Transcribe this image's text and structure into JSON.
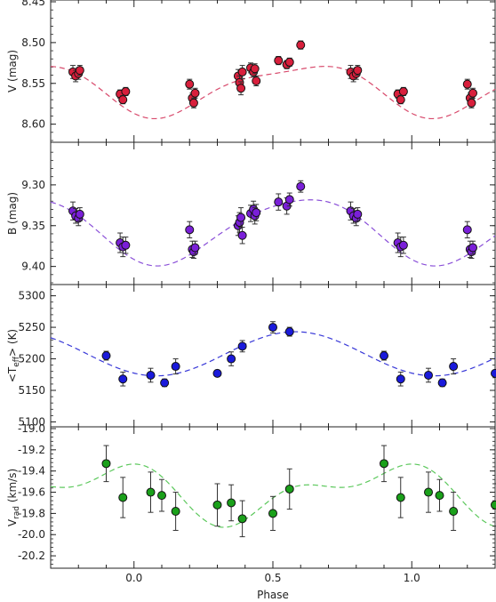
{
  "chart_data": {
    "type": "scatter",
    "xlabel": "Phase",
    "x_ticks": [
      "0.0",
      "0.5",
      "1.0"
    ],
    "xlim": [
      -0.3,
      1.3
    ],
    "panels": [
      {
        "key": "V",
        "ylabel_main": "V  (mag)",
        "ylabel_sub": "",
        "ylabel_rest": "",
        "inverted": true,
        "ylim": [
          8.45,
          8.62
        ],
        "yticks": [
          "8.45",
          "8.50",
          "8.55",
          "8.60"
        ],
        "ytick_values": [
          8.45,
          8.5,
          8.55,
          8.6
        ],
        "marker_color": "#d81f3c",
        "model_color": "#d84a6c",
        "model": {
          "mean": 8.556,
          "a1": -0.03,
          "phi1": 0.6,
          "a2": -0.008,
          "phi2": 0.3
        },
        "points": [
          {
            "x": -0.22,
            "y": 8.536,
            "err": 0.008
          },
          {
            "x": -0.21,
            "y": 8.541,
            "err": 0.007
          },
          {
            "x": -0.2,
            "y": 8.538,
            "err": 0.007
          },
          {
            "x": -0.195,
            "y": 8.534,
            "err": 0.006
          },
          {
            "x": -0.05,
            "y": 8.563,
            "err": 0.005
          },
          {
            "x": -0.04,
            "y": 8.57,
            "err": 0.005
          },
          {
            "x": -0.03,
            "y": 8.56,
            "err": 0.005
          },
          {
            "x": 0.2,
            "y": 8.551,
            "err": 0.006
          },
          {
            "x": 0.21,
            "y": 8.568,
            "err": 0.006
          },
          {
            "x": 0.215,
            "y": 8.574,
            "err": 0.006
          },
          {
            "x": 0.22,
            "y": 8.562,
            "err": 0.006
          },
          {
            "x": 0.375,
            "y": 8.541,
            "err": 0.008
          },
          {
            "x": 0.38,
            "y": 8.549,
            "err": 0.008
          },
          {
            "x": 0.385,
            "y": 8.556,
            "err": 0.008
          },
          {
            "x": 0.39,
            "y": 8.536,
            "err": 0.008
          },
          {
            "x": 0.42,
            "y": 8.531,
            "err": 0.006
          },
          {
            "x": 0.43,
            "y": 8.536,
            "err": 0.006
          },
          {
            "x": 0.435,
            "y": 8.532,
            "err": 0.006
          },
          {
            "x": 0.44,
            "y": 8.547,
            "err": 0.006
          },
          {
            "x": 0.52,
            "y": 8.522,
            "err": 0.005
          },
          {
            "x": 0.55,
            "y": 8.527,
            "err": 0.005
          },
          {
            "x": 0.56,
            "y": 8.524,
            "err": 0.005
          },
          {
            "x": 0.6,
            "y": 8.503,
            "err": 0.005
          },
          {
            "x": 0.78,
            "y": 8.536,
            "err": 0.008
          },
          {
            "x": 0.79,
            "y": 8.541,
            "err": 0.007
          },
          {
            "x": 0.8,
            "y": 8.538,
            "err": 0.007
          },
          {
            "x": 0.805,
            "y": 8.534,
            "err": 0.006
          },
          {
            "x": 0.95,
            "y": 8.563,
            "err": 0.005
          },
          {
            "x": 0.96,
            "y": 8.57,
            "err": 0.005
          },
          {
            "x": 0.97,
            "y": 8.56,
            "err": 0.005
          },
          {
            "x": 1.2,
            "y": 8.551,
            "err": 0.006
          },
          {
            "x": 1.21,
            "y": 8.568,
            "err": 0.006
          },
          {
            "x": 1.215,
            "y": 8.574,
            "err": 0.006
          },
          {
            "x": 1.22,
            "y": 8.562,
            "err": 0.006
          }
        ]
      },
      {
        "key": "B",
        "ylabel_main": "B  (mag)",
        "ylabel_sub": "",
        "ylabel_rest": "",
        "inverted": true,
        "ylim": [
          9.25,
          9.42
        ],
        "yticks": [
          "9.30",
          "9.35",
          "9.40"
        ],
        "ytick_values": [
          9.3,
          9.35,
          9.4
        ],
        "marker_color": "#7a1fd8",
        "model_color": "#8a4fd8",
        "model": {
          "mean": 9.355,
          "a1": -0.04,
          "phi1": 0.6,
          "a2": -0.005,
          "phi2": 0.3
        },
        "points": [
          {
            "x": -0.22,
            "y": 9.332,
            "err": 0.011
          },
          {
            "x": -0.21,
            "y": 9.338,
            "err": 0.009
          },
          {
            "x": -0.2,
            "y": 9.341,
            "err": 0.009
          },
          {
            "x": -0.195,
            "y": 9.336,
            "err": 0.008
          },
          {
            "x": -0.05,
            "y": 9.371,
            "err": 0.012
          },
          {
            "x": -0.04,
            "y": 9.376,
            "err": 0.012
          },
          {
            "x": -0.03,
            "y": 9.374,
            "err": 0.01
          },
          {
            "x": 0.2,
            "y": 9.355,
            "err": 0.01
          },
          {
            "x": 0.21,
            "y": 9.379,
            "err": 0.01
          },
          {
            "x": 0.215,
            "y": 9.382,
            "err": 0.008
          },
          {
            "x": 0.22,
            "y": 9.377,
            "err": 0.008
          },
          {
            "x": 0.375,
            "y": 9.35,
            "err": 0.012
          },
          {
            "x": 0.38,
            "y": 9.346,
            "err": 0.012
          },
          {
            "x": 0.385,
            "y": 9.34,
            "err": 0.012
          },
          {
            "x": 0.39,
            "y": 9.362,
            "err": 0.01
          },
          {
            "x": 0.42,
            "y": 9.335,
            "err": 0.01
          },
          {
            "x": 0.43,
            "y": 9.33,
            "err": 0.01
          },
          {
            "x": 0.435,
            "y": 9.338,
            "err": 0.01
          },
          {
            "x": 0.44,
            "y": 9.334,
            "err": 0.01
          },
          {
            "x": 0.52,
            "y": 9.321,
            "err": 0.01
          },
          {
            "x": 0.55,
            "y": 9.326,
            "err": 0.01
          },
          {
            "x": 0.56,
            "y": 9.318,
            "err": 0.008
          },
          {
            "x": 0.6,
            "y": 9.302,
            "err": 0.007
          },
          {
            "x": 0.78,
            "y": 9.332,
            "err": 0.011
          },
          {
            "x": 0.79,
            "y": 9.338,
            "err": 0.009
          },
          {
            "x": 0.8,
            "y": 9.341,
            "err": 0.009
          },
          {
            "x": 0.805,
            "y": 9.336,
            "err": 0.008
          },
          {
            "x": 0.95,
            "y": 9.371,
            "err": 0.012
          },
          {
            "x": 0.96,
            "y": 9.376,
            "err": 0.012
          },
          {
            "x": 0.97,
            "y": 9.374,
            "err": 0.01
          },
          {
            "x": 1.2,
            "y": 9.355,
            "err": 0.01
          },
          {
            "x": 1.21,
            "y": 9.379,
            "err": 0.01
          },
          {
            "x": 1.215,
            "y": 9.382,
            "err": 0.008
          },
          {
            "x": 1.22,
            "y": 9.377,
            "err": 0.008
          }
        ]
      },
      {
        "key": "Teff",
        "ylabel_main": "<T",
        "ylabel_sub": "eff",
        "ylabel_rest": ">  (K)",
        "inverted": false,
        "ylim": [
          5095,
          5315
        ],
        "yticks": [
          "5100",
          "5150",
          "5200",
          "5250",
          "5300"
        ],
        "ytick_values": [
          5100,
          5150,
          5200,
          5250,
          5300
        ],
        "marker_color": "#1a1adb",
        "model_color": "#3a3ad8",
        "model": {
          "mean": 5208,
          "a1": 35,
          "phi1": 0.58,
          "a2": 0,
          "phi2": 0
        },
        "points": [
          {
            "x": -0.1,
            "y": 5205,
            "err": 7
          },
          {
            "x": -0.04,
            "y": 5168,
            "err": 11
          },
          {
            "x": 0.06,
            "y": 5174,
            "err": 11
          },
          {
            "x": 0.11,
            "y": 5162,
            "err": 6
          },
          {
            "x": 0.15,
            "y": 5188,
            "err": 12
          },
          {
            "x": 0.3,
            "y": 5177,
            "err": 5
          },
          {
            "x": 0.35,
            "y": 5200,
            "err": 11
          },
          {
            "x": 0.39,
            "y": 5220,
            "err": 9
          },
          {
            "x": 0.5,
            "y": 5250,
            "err": 9
          },
          {
            "x": 0.56,
            "y": 5243,
            "err": 7
          },
          {
            "x": 0.9,
            "y": 5205,
            "err": 7
          },
          {
            "x": 0.96,
            "y": 5168,
            "err": 11
          },
          {
            "x": 1.06,
            "y": 5174,
            "err": 11
          },
          {
            "x": 1.11,
            "y": 5162,
            "err": 6
          },
          {
            "x": 1.15,
            "y": 5188,
            "err": 12
          },
          {
            "x": 1.3,
            "y": 5177,
            "err": 5
          }
        ]
      },
      {
        "key": "Vrad",
        "ylabel_main": "V",
        "ylabel_sub": "rad",
        "ylabel_rest": "  (km/s)",
        "inverted": false,
        "ylim": [
          -20.3,
          -19.0
        ],
        "yticks": [
          "-19.0",
          "-19.2",
          "-19.4",
          "-19.6",
          "-19.8",
          "-20.0",
          "-20.2"
        ],
        "ytick_values": [
          -19.0,
          -19.2,
          -19.4,
          -19.6,
          -19.8,
          -20.0,
          -20.2
        ],
        "marker_color": "#1aa01a",
        "model_color": "#5cc85c",
        "model": {
          "mean": -19.6,
          "a1": 0.22,
          "phi1": 0.88,
          "a2": 0.13,
          "phi2": 1.05
        },
        "points": [
          {
            "x": -0.1,
            "y": -19.33,
            "err": 0.17
          },
          {
            "x": -0.04,
            "y": -19.65,
            "err": 0.19
          },
          {
            "x": 0.06,
            "y": -19.6,
            "err": 0.19
          },
          {
            "x": 0.1,
            "y": -19.63,
            "err": 0.15
          },
          {
            "x": 0.15,
            "y": -19.78,
            "err": 0.18
          },
          {
            "x": 0.3,
            "y": -19.72,
            "err": 0.2
          },
          {
            "x": 0.35,
            "y": -19.7,
            "err": 0.17
          },
          {
            "x": 0.39,
            "y": -19.85,
            "err": 0.17
          },
          {
            "x": 0.5,
            "y": -19.8,
            "err": 0.16
          },
          {
            "x": 0.56,
            "y": -19.57,
            "err": 0.19
          },
          {
            "x": 0.9,
            "y": -19.33,
            "err": 0.17
          },
          {
            "x": 0.96,
            "y": -19.65,
            "err": 0.19
          },
          {
            "x": 1.06,
            "y": -19.6,
            "err": 0.19
          },
          {
            "x": 1.1,
            "y": -19.63,
            "err": 0.15
          },
          {
            "x": 1.15,
            "y": -19.78,
            "err": 0.18
          },
          {
            "x": 1.3,
            "y": -19.72,
            "err": 0.2
          }
        ]
      }
    ]
  }
}
